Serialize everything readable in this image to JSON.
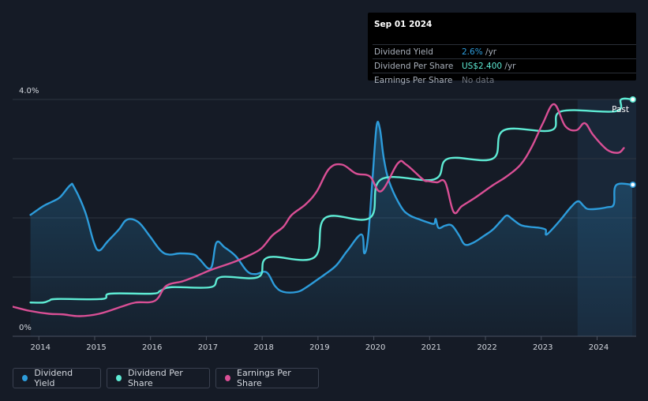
{
  "tooltip": {
    "date": "Sep 01 2024",
    "rows": [
      {
        "label": "Dividend Yield",
        "value": "2.6%",
        "suffix": " /yr"
      },
      {
        "label": "Dividend Per Share",
        "value": "US$2.400",
        "suffix": " /yr"
      },
      {
        "label": "Earnings Per Share",
        "value": "No data",
        "suffix": ""
      }
    ]
  },
  "past_label": "Past",
  "legend": {
    "items": [
      {
        "label": "Dividend Yield",
        "color": "#2d9cdb"
      },
      {
        "label": "Dividend Per Share",
        "color": "#5eebd4"
      },
      {
        "label": "Earnings Per Share",
        "color": "#d94f95"
      }
    ]
  },
  "chart_data": {
    "type": "line",
    "title": "",
    "x_ticks": [
      "2014",
      "2015",
      "2016",
      "2017",
      "2018",
      "2019",
      "2020",
      "2021",
      "2022",
      "2023",
      "2024"
    ],
    "y_tick_labels": [
      "4.0%",
      "0%"
    ],
    "xlim": [
      2013.55,
      2024.72
    ],
    "ylim": [
      0,
      4.0
    ],
    "forecast_start": 2023.67,
    "gridlines": true,
    "legend_position": "bottom-left",
    "series": [
      {
        "name": "Dividend Yield",
        "axis": "left (% yield)",
        "color": "#2d9cdb",
        "area": true,
        "points": [
          [
            2013.87,
            2.05
          ],
          [
            2014.1,
            2.2
          ],
          [
            2014.25,
            2.27
          ],
          [
            2014.4,
            2.35
          ],
          [
            2014.58,
            2.55
          ],
          [
            2014.65,
            2.52
          ],
          [
            2014.85,
            2.1
          ],
          [
            2015.0,
            1.6
          ],
          [
            2015.1,
            1.45
          ],
          [
            2015.25,
            1.6
          ],
          [
            2015.45,
            1.8
          ],
          [
            2015.6,
            1.97
          ],
          [
            2015.8,
            1.93
          ],
          [
            2016.0,
            1.7
          ],
          [
            2016.2,
            1.45
          ],
          [
            2016.35,
            1.38
          ],
          [
            2016.55,
            1.4
          ],
          [
            2016.8,
            1.38
          ],
          [
            2016.9,
            1.3
          ],
          [
            2017.1,
            1.15
          ],
          [
            2017.2,
            1.58
          ],
          [
            2017.35,
            1.5
          ],
          [
            2017.55,
            1.35
          ],
          [
            2017.75,
            1.1
          ],
          [
            2017.9,
            1.05
          ],
          [
            2018.1,
            1.08
          ],
          [
            2018.25,
            0.85
          ],
          [
            2018.4,
            0.75
          ],
          [
            2018.65,
            0.75
          ],
          [
            2018.8,
            0.82
          ],
          [
            2019.0,
            0.95
          ],
          [
            2019.15,
            1.05
          ],
          [
            2019.35,
            1.2
          ],
          [
            2019.55,
            1.45
          ],
          [
            2019.8,
            1.72
          ],
          [
            2019.85,
            1.4
          ],
          [
            2019.92,
            1.7
          ],
          [
            2020.0,
            2.7
          ],
          [
            2020.07,
            3.55
          ],
          [
            2020.13,
            3.5
          ],
          [
            2020.2,
            3.0
          ],
          [
            2020.3,
            2.6
          ],
          [
            2020.5,
            2.2
          ],
          [
            2020.65,
            2.05
          ],
          [
            2020.85,
            1.97
          ],
          [
            2021.0,
            1.92
          ],
          [
            2021.1,
            1.9
          ],
          [
            2021.13,
            1.98
          ],
          [
            2021.18,
            1.83
          ],
          [
            2021.3,
            1.87
          ],
          [
            2021.42,
            1.87
          ],
          [
            2021.55,
            1.7
          ],
          [
            2021.65,
            1.55
          ],
          [
            2021.8,
            1.58
          ],
          [
            2022.0,
            1.7
          ],
          [
            2022.15,
            1.8
          ],
          [
            2022.3,
            1.95
          ],
          [
            2022.4,
            2.04
          ],
          [
            2022.5,
            1.98
          ],
          [
            2022.65,
            1.88
          ],
          [
            2022.8,
            1.85
          ],
          [
            2023.0,
            1.83
          ],
          [
            2023.1,
            1.8
          ],
          [
            2023.12,
            1.72
          ],
          [
            2023.35,
            1.95
          ],
          [
            2023.55,
            2.18
          ],
          [
            2023.68,
            2.28
          ],
          [
            2023.78,
            2.2
          ],
          [
            2023.85,
            2.15
          ],
          [
            2024.0,
            2.15
          ],
          [
            2024.2,
            2.18
          ],
          [
            2024.32,
            2.23
          ],
          [
            2024.36,
            2.55
          ],
          [
            2024.65,
            2.56
          ]
        ]
      },
      {
        "name": "Dividend Per Share",
        "axis": "scaled",
        "color": "#5eebd4",
        "points": [
          [
            2013.87,
            0.57
          ],
          [
            2014.1,
            0.57
          ],
          [
            2014.2,
            0.6
          ],
          [
            2014.35,
            0.63
          ],
          [
            2015.15,
            0.63
          ],
          [
            2015.3,
            0.72
          ],
          [
            2016.05,
            0.72
          ],
          [
            2016.2,
            0.77
          ],
          [
            2016.4,
            0.83
          ],
          [
            2017.1,
            0.83
          ],
          [
            2017.28,
            1.0
          ],
          [
            2017.95,
            1.0
          ],
          [
            2018.12,
            1.33
          ],
          [
            2018.95,
            1.33
          ],
          [
            2019.15,
            2.0
          ],
          [
            2019.95,
            2.0
          ],
          [
            2020.15,
            2.65
          ],
          [
            2021.1,
            2.65
          ],
          [
            2021.35,
            3.0
          ],
          [
            2022.15,
            3.0
          ],
          [
            2022.35,
            3.48
          ],
          [
            2023.2,
            3.48
          ],
          [
            2023.38,
            3.8
          ],
          [
            2024.35,
            3.8
          ],
          [
            2024.45,
            4.0
          ],
          [
            2024.65,
            4.0
          ]
        ]
      },
      {
        "name": "Earnings Per Share",
        "axis": "scaled",
        "color": "#d94f95",
        "points": [
          [
            2013.55,
            0.5
          ],
          [
            2013.85,
            0.43
          ],
          [
            2014.2,
            0.38
          ],
          [
            2014.45,
            0.37
          ],
          [
            2014.75,
            0.34
          ],
          [
            2015.1,
            0.38
          ],
          [
            2015.5,
            0.5
          ],
          [
            2015.75,
            0.57
          ],
          [
            2016.1,
            0.6
          ],
          [
            2016.3,
            0.85
          ],
          [
            2016.6,
            0.93
          ],
          [
            2016.85,
            1.02
          ],
          [
            2017.1,
            1.12
          ],
          [
            2017.5,
            1.25
          ],
          [
            2017.75,
            1.35
          ],
          [
            2018.0,
            1.48
          ],
          [
            2018.2,
            1.7
          ],
          [
            2018.4,
            1.85
          ],
          [
            2018.55,
            2.05
          ],
          [
            2018.8,
            2.23
          ],
          [
            2019.0,
            2.45
          ],
          [
            2019.22,
            2.83
          ],
          [
            2019.45,
            2.9
          ],
          [
            2019.7,
            2.75
          ],
          [
            2019.95,
            2.7
          ],
          [
            2020.15,
            2.45
          ],
          [
            2020.45,
            2.92
          ],
          [
            2020.6,
            2.9
          ],
          [
            2020.9,
            2.65
          ],
          [
            2021.0,
            2.62
          ],
          [
            2021.15,
            2.6
          ],
          [
            2021.3,
            2.6
          ],
          [
            2021.45,
            2.1
          ],
          [
            2021.6,
            2.2
          ],
          [
            2021.85,
            2.35
          ],
          [
            2022.15,
            2.55
          ],
          [
            2022.4,
            2.7
          ],
          [
            2022.65,
            2.9
          ],
          [
            2022.85,
            3.2
          ],
          [
            2023.05,
            3.6
          ],
          [
            2023.25,
            3.92
          ],
          [
            2023.45,
            3.55
          ],
          [
            2023.65,
            3.48
          ],
          [
            2023.8,
            3.6
          ],
          [
            2023.95,
            3.4
          ],
          [
            2024.2,
            3.15
          ],
          [
            2024.4,
            3.1
          ],
          [
            2024.5,
            3.18
          ]
        ]
      }
    ],
    "end_markers": [
      {
        "series": "Dividend Per Share",
        "x": 2024.66,
        "y": 4.0
      },
      {
        "series": "Dividend Yield",
        "x": 2024.66,
        "y": 2.56
      }
    ]
  }
}
